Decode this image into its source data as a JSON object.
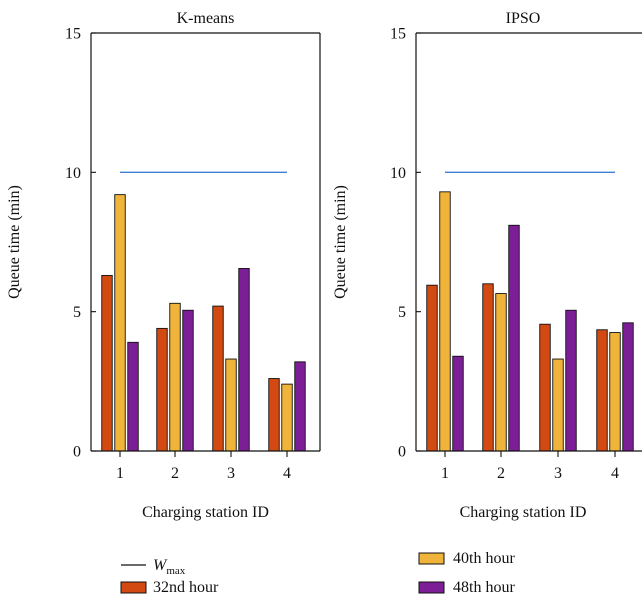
{
  "chart_data": [
    {
      "type": "bar",
      "title": "K-means",
      "xlabel": "Charging station ID",
      "ylabel": "Queue time (min)",
      "categories": [
        "1",
        "2",
        "3",
        "4"
      ],
      "ylim": [
        0,
        15
      ],
      "yticks": [
        "0",
        "5",
        "10",
        "15"
      ],
      "reference_line": {
        "y": 10,
        "x_range": [
          "1",
          "4"
        ]
      },
      "series": [
        {
          "name": "32nd hour",
          "values": [
            6.3,
            4.4,
            5.2,
            2.6
          ]
        },
        {
          "name": "40th hour",
          "values": [
            9.2,
            5.3,
            3.3,
            2.4
          ]
        },
        {
          "name": "48th hour",
          "values": [
            3.9,
            5.05,
            6.55,
            3.2
          ]
        }
      ]
    },
    {
      "type": "bar",
      "title": "IPSO",
      "xlabel": "Charging station ID",
      "ylabel": "Queue time (min)",
      "categories": [
        "1",
        "2",
        "3",
        "4"
      ],
      "ylim": [
        0,
        15
      ],
      "yticks": [
        "0",
        "5",
        "10",
        "15"
      ],
      "reference_line": {
        "y": 10,
        "x_range": [
          "1",
          "4"
        ]
      },
      "series": [
        {
          "name": "32nd hour",
          "values": [
            5.95,
            6.0,
            4.55,
            4.35
          ]
        },
        {
          "name": "40th hour",
          "values": [
            9.3,
            5.65,
            3.3,
            4.25
          ]
        },
        {
          "name": "48th hour",
          "values": [
            3.4,
            8.1,
            5.05,
            4.6
          ]
        }
      ]
    }
  ],
  "legend": {
    "wmax_base": "W",
    "wmax_sub": "max",
    "items": [
      "32nd hour",
      "40th hour",
      "48th hour"
    ]
  },
  "colors": {
    "series": [
      "#d24a12",
      "#f1b43a",
      "#7c1f96"
    ],
    "reference_line": "#3f7fd1",
    "bar_edge": "#111111"
  }
}
